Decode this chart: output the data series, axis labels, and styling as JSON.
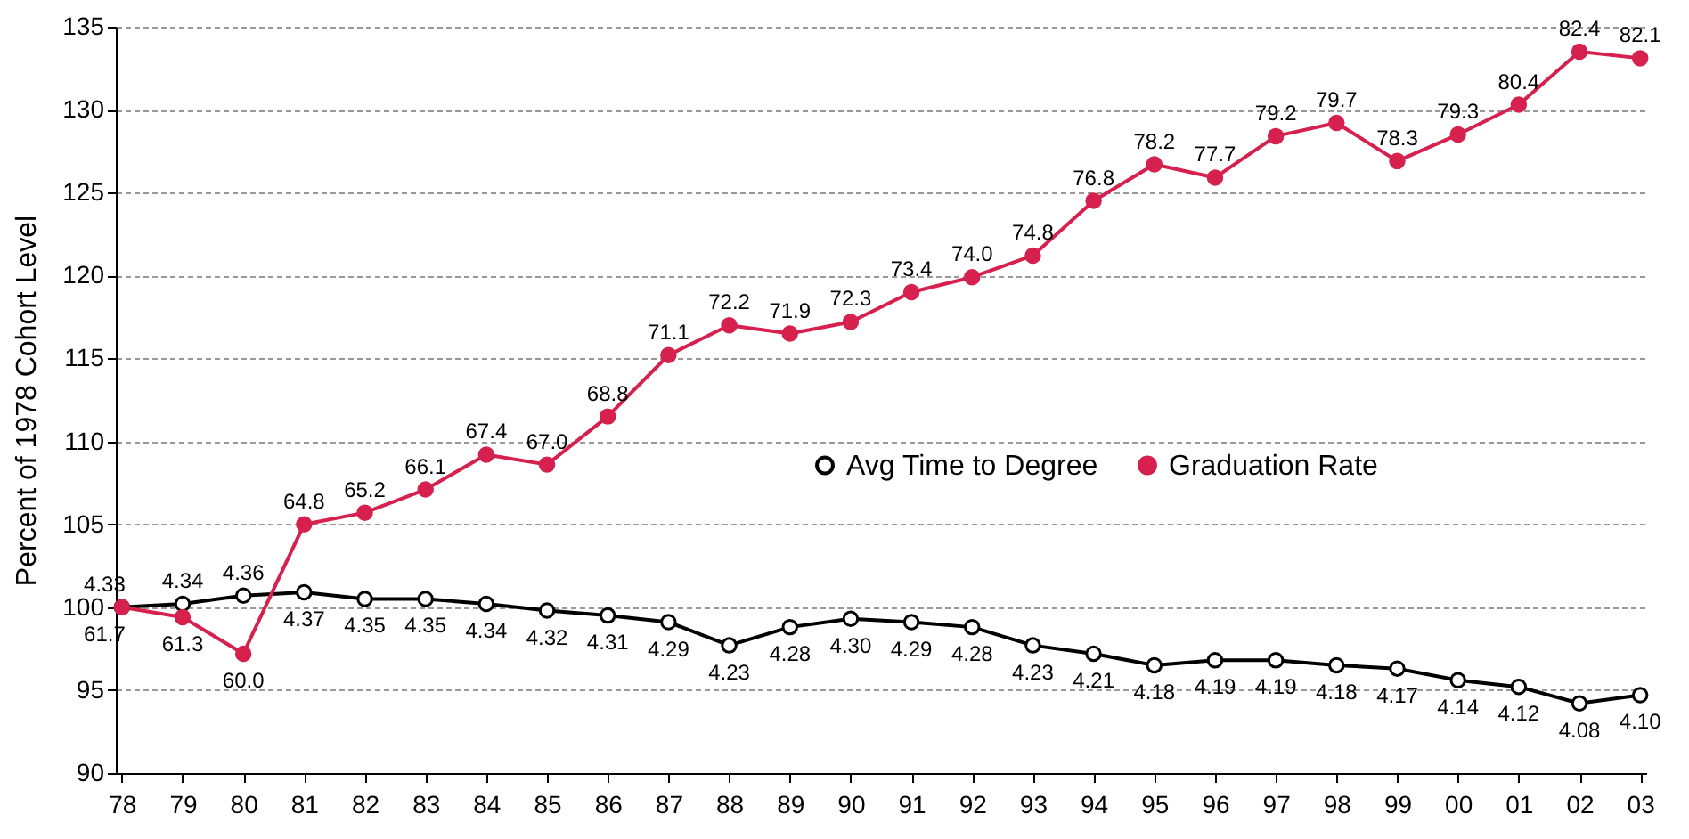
{
  "chart_data": {
    "type": "line",
    "ylabel": "Percent of 1978 Cohort Level",
    "categories": [
      "78",
      "79",
      "80",
      "81",
      "82",
      "83",
      "84",
      "85",
      "86",
      "87",
      "88",
      "89",
      "90",
      "91",
      "92",
      "93",
      "94",
      "95",
      "96",
      "97",
      "98",
      "99",
      "00",
      "01",
      "02",
      "03"
    ],
    "series": [
      {
        "name": "Avg Time to Degree",
        "color": "#000000",
        "values": [
          100,
          100.2,
          100.7,
          100.9,
          100.5,
          100.5,
          100.2,
          99.8,
          99.5,
          99.1,
          97.7,
          98.8,
          99.3,
          99.1,
          98.8,
          97.7,
          97.2,
          96.5,
          96.8,
          96.8,
          96.5,
          96.3,
          95.6,
          95.2,
          94.2,
          94.7
        ]
      },
      {
        "name": "Graduation Rate",
        "color": "#d6204e",
        "values": [
          100,
          99.4,
          97.2,
          105.0,
          105.7,
          107.1,
          109.2,
          108.6,
          111.5,
          115.2,
          117.0,
          116.5,
          117.2,
          119.0,
          119.9,
          121.2,
          124.5,
          126.7,
          125.9,
          128.4,
          129.2,
          126.9,
          128.5,
          130.3,
          133.5,
          133.1
        ]
      }
    ],
    "annotations": [
      {
        "text": "4.33",
        "x": "78",
        "y": 100
      },
      {
        "text": "4.34",
        "x": "79",
        "y": 100.2
      },
      {
        "text": "4.36",
        "x": "80",
        "y": 100.7
      },
      {
        "text": "4.37",
        "x": "81",
        "y": 100.9
      },
      {
        "text": "4.35",
        "x": "82",
        "y": 100.5
      },
      {
        "text": "4.35",
        "x": "83",
        "y": 100.5
      },
      {
        "text": "4.34",
        "x": "84",
        "y": 100.2
      },
      {
        "text": "4.32",
        "x": "85",
        "y": 99.8
      },
      {
        "text": "4.31",
        "x": "86",
        "y": 99.5
      },
      {
        "text": "4.29",
        "x": "87",
        "y": 99.1
      },
      {
        "text": "4.23",
        "x": "88",
        "y": 97.7
      },
      {
        "text": "4.28",
        "x": "89",
        "y": 98.8
      },
      {
        "text": "4.30",
        "x": "90",
        "y": 99.3
      },
      {
        "text": "4.29",
        "x": "91",
        "y": 99.1
      },
      {
        "text": "4.28",
        "x": "92",
        "y": 98.8
      },
      {
        "text": "4.23",
        "x": "93",
        "y": 97.7
      },
      {
        "text": "4.21",
        "x": "94",
        "y": 97.2
      },
      {
        "text": "4.18",
        "x": "95",
        "y": 96.5
      },
      {
        "text": "4.19",
        "x": "96",
        "y": 96.8
      },
      {
        "text": "4.19",
        "x": "97",
        "y": 96.8
      },
      {
        "text": "4.18",
        "x": "98",
        "y": 96.5
      },
      {
        "text": "4.17",
        "x": "99",
        "y": 96.3
      },
      {
        "text": "4.14",
        "x": "00",
        "y": 95.6
      },
      {
        "text": "4.12",
        "x": "01",
        "y": 95.2
      },
      {
        "text": "4.08",
        "x": "02",
        "y": 94.2
      },
      {
        "text": "4.10",
        "x": "03",
        "y": 94.7
      },
      {
        "text": "61.7",
        "x": "78",
        "y": 100
      },
      {
        "text": "61.3",
        "x": "79",
        "y": 99.4
      },
      {
        "text": "60.0",
        "x": "80",
        "y": 97.2
      },
      {
        "text": "64.8",
        "x": "81",
        "y": 105.0
      },
      {
        "text": "65.2",
        "x": "82",
        "y": 105.7
      },
      {
        "text": "66.1",
        "x": "83",
        "y": 107.1
      },
      {
        "text": "67.4",
        "x": "84",
        "y": 109.2
      },
      {
        "text": "67.0",
        "x": "85",
        "y": 108.6
      },
      {
        "text": "68.8",
        "x": "86",
        "y": 111.5
      },
      {
        "text": "71.1",
        "x": "87",
        "y": 115.2
      },
      {
        "text": "72.2",
        "x": "88",
        "y": 117.0
      },
      {
        "text": "71.9",
        "x": "89",
        "y": 116.5
      },
      {
        "text": "72.3",
        "x": "90",
        "y": 117.2
      },
      {
        "text": "73.4",
        "x": "91",
        "y": 119.0
      },
      {
        "text": "74.0",
        "x": "92",
        "y": 119.9
      },
      {
        "text": "74.8",
        "x": "93",
        "y": 121.2
      },
      {
        "text": "76.8",
        "x": "94",
        "y": 124.5
      },
      {
        "text": "78.2",
        "x": "95",
        "y": 126.7
      },
      {
        "text": "77.7",
        "x": "96",
        "y": 125.9
      },
      {
        "text": "79.2",
        "x": "97",
        "y": 128.4
      },
      {
        "text": "79.7",
        "x": "98",
        "y": 129.2
      },
      {
        "text": "78.3",
        "x": "99",
        "y": 126.9
      },
      {
        "text": "79.3",
        "x": "00",
        "y": 128.5
      },
      {
        "text": "80.4",
        "x": "01",
        "y": 130.3
      },
      {
        "text": "82.4",
        "x": "02",
        "y": 133.5
      },
      {
        "text": "82.1",
        "x": "03",
        "y": 133.1
      }
    ],
    "ylim": [
      90,
      135
    ],
    "yticks": [
      90,
      95,
      100,
      105,
      110,
      115,
      120,
      125,
      130,
      135
    ],
    "grid": "y",
    "legend": "right",
    "marker": "circle",
    "line_style": "solid"
  }
}
